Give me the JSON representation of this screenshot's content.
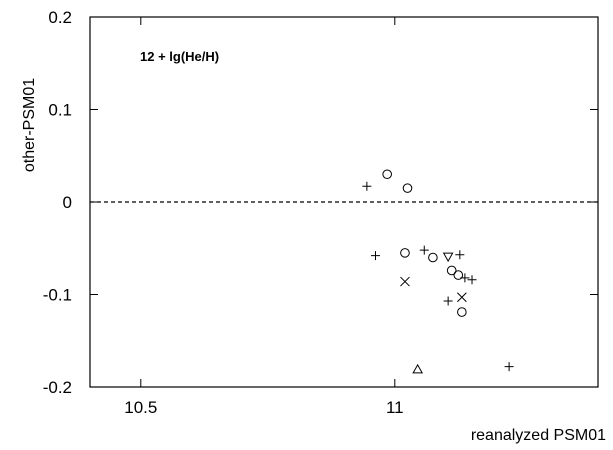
{
  "chart_data": {
    "type": "scatter",
    "title": "",
    "annotation": "12 + lg(He/H)",
    "xlabel": "reanalyzed PSM01",
    "ylabel": "other-PSM01",
    "xlim": [
      10.4,
      11.4
    ],
    "ylim": [
      -0.2,
      0.2
    ],
    "x_ticks": [
      10.5,
      11.0
    ],
    "x_tick_labels": [
      "10.5",
      "11"
    ],
    "y_ticks": [
      -0.2,
      -0.1,
      0.0,
      0.1,
      0.2
    ],
    "y_tick_labels": [
      "-0.2",
      "-0.1",
      "0",
      "0.1",
      "0.2"
    ],
    "grid": false,
    "reference_line": {
      "y": 0.0,
      "style": "dashed"
    },
    "series": [
      {
        "marker": "circle",
        "points": [
          {
            "x": 10.985,
            "y": 0.03
          },
          {
            "x": 11.025,
            "y": 0.015
          },
          {
            "x": 11.02,
            "y": -0.055
          },
          {
            "x": 11.075,
            "y": -0.06
          },
          {
            "x": 11.112,
            "y": -0.074
          },
          {
            "x": 11.125,
            "y": -0.079
          },
          {
            "x": 11.132,
            "y": -0.119
          }
        ]
      },
      {
        "marker": "plus",
        "points": [
          {
            "x": 10.945,
            "y": 0.017
          },
          {
            "x": 10.962,
            "y": -0.058
          },
          {
            "x": 11.058,
            "y": -0.052
          },
          {
            "x": 11.128,
            "y": -0.057
          },
          {
            "x": 11.138,
            "y": -0.082
          },
          {
            "x": 11.152,
            "y": -0.084
          },
          {
            "x": 11.105,
            "y": -0.107
          },
          {
            "x": 11.225,
            "y": -0.178
          }
        ]
      },
      {
        "marker": "cross",
        "points": [
          {
            "x": 11.02,
            "y": -0.086
          },
          {
            "x": 11.132,
            "y": -0.103
          }
        ]
      },
      {
        "marker": "triangle-down",
        "points": [
          {
            "x": 11.105,
            "y": -0.059
          }
        ]
      },
      {
        "marker": "triangle-up",
        "points": [
          {
            "x": 11.045,
            "y": -0.181
          }
        ]
      }
    ]
  }
}
